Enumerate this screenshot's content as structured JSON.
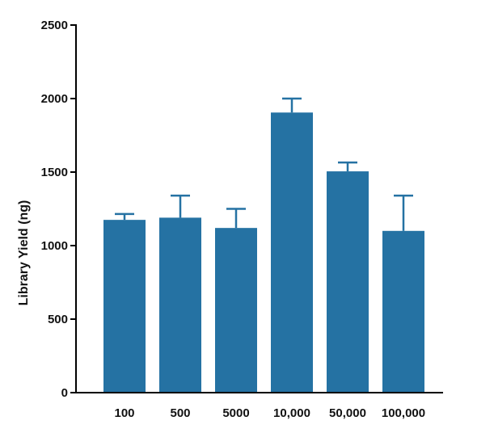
{
  "chart_data": {
    "type": "bar",
    "title": "",
    "xlabel": "",
    "ylabel": "Library Yield (ng)",
    "categories": [
      "100",
      "500",
      "5000",
      "10,000",
      "50,000",
      "100,000"
    ],
    "values": [
      1175,
      1190,
      1120,
      1905,
      1505,
      1100
    ],
    "error_upper": [
      1215,
      1340,
      1250,
      2000,
      1565,
      1340
    ],
    "ylim": [
      0,
      2500
    ],
    "yticks": [
      "0",
      "500",
      "1000",
      "1500",
      "2000",
      "2500"
    ],
    "ytick_values": [
      0,
      500,
      1000,
      1500,
      2000,
      2500
    ],
    "grid": false,
    "legend": "none",
    "colors": {
      "bar": "#2572a3",
      "axis": "#000000"
    }
  }
}
